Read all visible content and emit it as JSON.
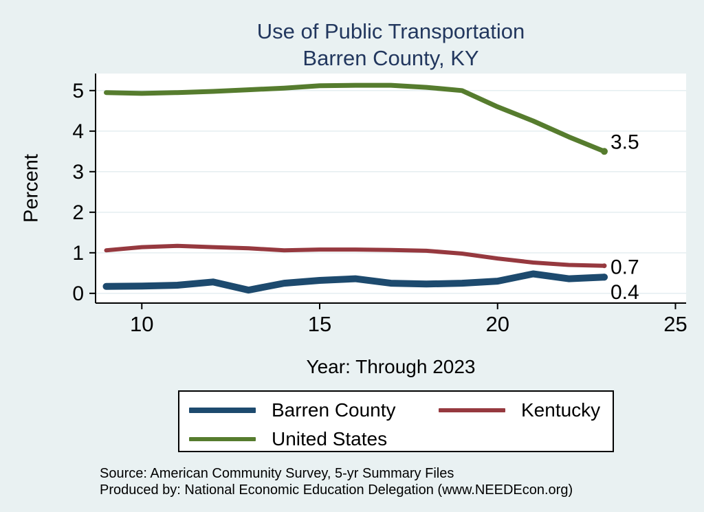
{
  "header": {
    "title_line1": "Use of Public Transportation",
    "title_line2": "Barren County, KY"
  },
  "chart_data": {
    "type": "line",
    "title": "Use of Public Transportation — Barren County, KY",
    "xlabel": "Year: Through 2023",
    "ylabel": "Percent",
    "x": [
      2009,
      2010,
      2011,
      2012,
      2013,
      2014,
      2015,
      2016,
      2017,
      2018,
      2019,
      2020,
      2021,
      2022,
      2023
    ],
    "series": [
      {
        "name": "United States",
        "color": "#567c2e",
        "width": 7,
        "values": [
          4.95,
          4.93,
          4.95,
          4.98,
          5.02,
          5.06,
          5.12,
          5.13,
          5.13,
          5.08,
          5.0,
          4.6,
          4.25,
          3.86,
          3.5
        ],
        "end_label": "3.5",
        "label_dy": -14,
        "end_dot": 5
      },
      {
        "name": "Kentucky",
        "color": "#96393f",
        "width": 6,
        "values": [
          1.06,
          1.14,
          1.17,
          1.14,
          1.11,
          1.06,
          1.08,
          1.08,
          1.07,
          1.05,
          0.98,
          0.86,
          0.76,
          0.7,
          0.68
        ],
        "end_label": "0.7",
        "label_dy": 2,
        "end_dot": 3.5
      },
      {
        "name": "Barren County",
        "color": "#1d4a6e",
        "width": 10,
        "values": [
          0.17,
          0.18,
          0.2,
          0.28,
          0.08,
          0.25,
          0.32,
          0.36,
          0.25,
          0.23,
          0.25,
          0.3,
          0.48,
          0.36,
          0.4
        ],
        "end_label": "0.4",
        "label_dy": 22,
        "end_dot": 5
      }
    ],
    "ylim": [
      -0.24,
      5.42
    ],
    "yticks": [
      0,
      1,
      2,
      3,
      4,
      5
    ],
    "xlim": [
      2008.7,
      2025.3
    ],
    "xticks": [
      {
        "value": 2010,
        "label": "10"
      },
      {
        "value": 2015,
        "label": "15"
      },
      {
        "value": 2020,
        "label": "20"
      },
      {
        "value": 2025,
        "label": "25"
      }
    ],
    "grid": "horizontal",
    "legend_position": "bottom",
    "legend_order": [
      "Barren County",
      "Kentucky",
      "United States"
    ],
    "plot_bg": "#ffffff",
    "grid_color": "#e4eef0",
    "axis_color": "#000000"
  },
  "footer": {
    "source": "Source: American Community Survey, 5-yr Summary Files",
    "produced_by": "Produced by: National Economic Education Delegation (www.NEEDEcon.org)"
  }
}
